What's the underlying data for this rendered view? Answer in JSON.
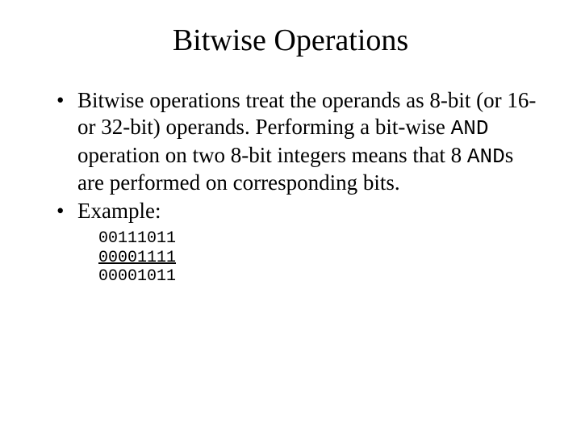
{
  "title": "Bitwise Operations",
  "bullet1": {
    "part1": "Bitwise operations treat the operands as 8-bit (or 16- or 32-bit) operands.  Performing a bit-wise ",
    "and1": "AND",
    "part2": " operation on two 8-bit integers means that 8 ",
    "and2": "AND",
    "part3": "s are performed on corresponding bits."
  },
  "bullet2": "Example:",
  "example": {
    "line1": "00111011",
    "line2": "00001111",
    "line3": "00001011"
  },
  "styles": {
    "background_color": "#ffffff",
    "text_color": "#000000",
    "title_fontsize": 38,
    "body_fontsize": 27,
    "mono_fontsize_body": 26,
    "example_fontsize": 20,
    "font_family_body": "Times New Roman",
    "font_family_mono": "Courier New"
  }
}
